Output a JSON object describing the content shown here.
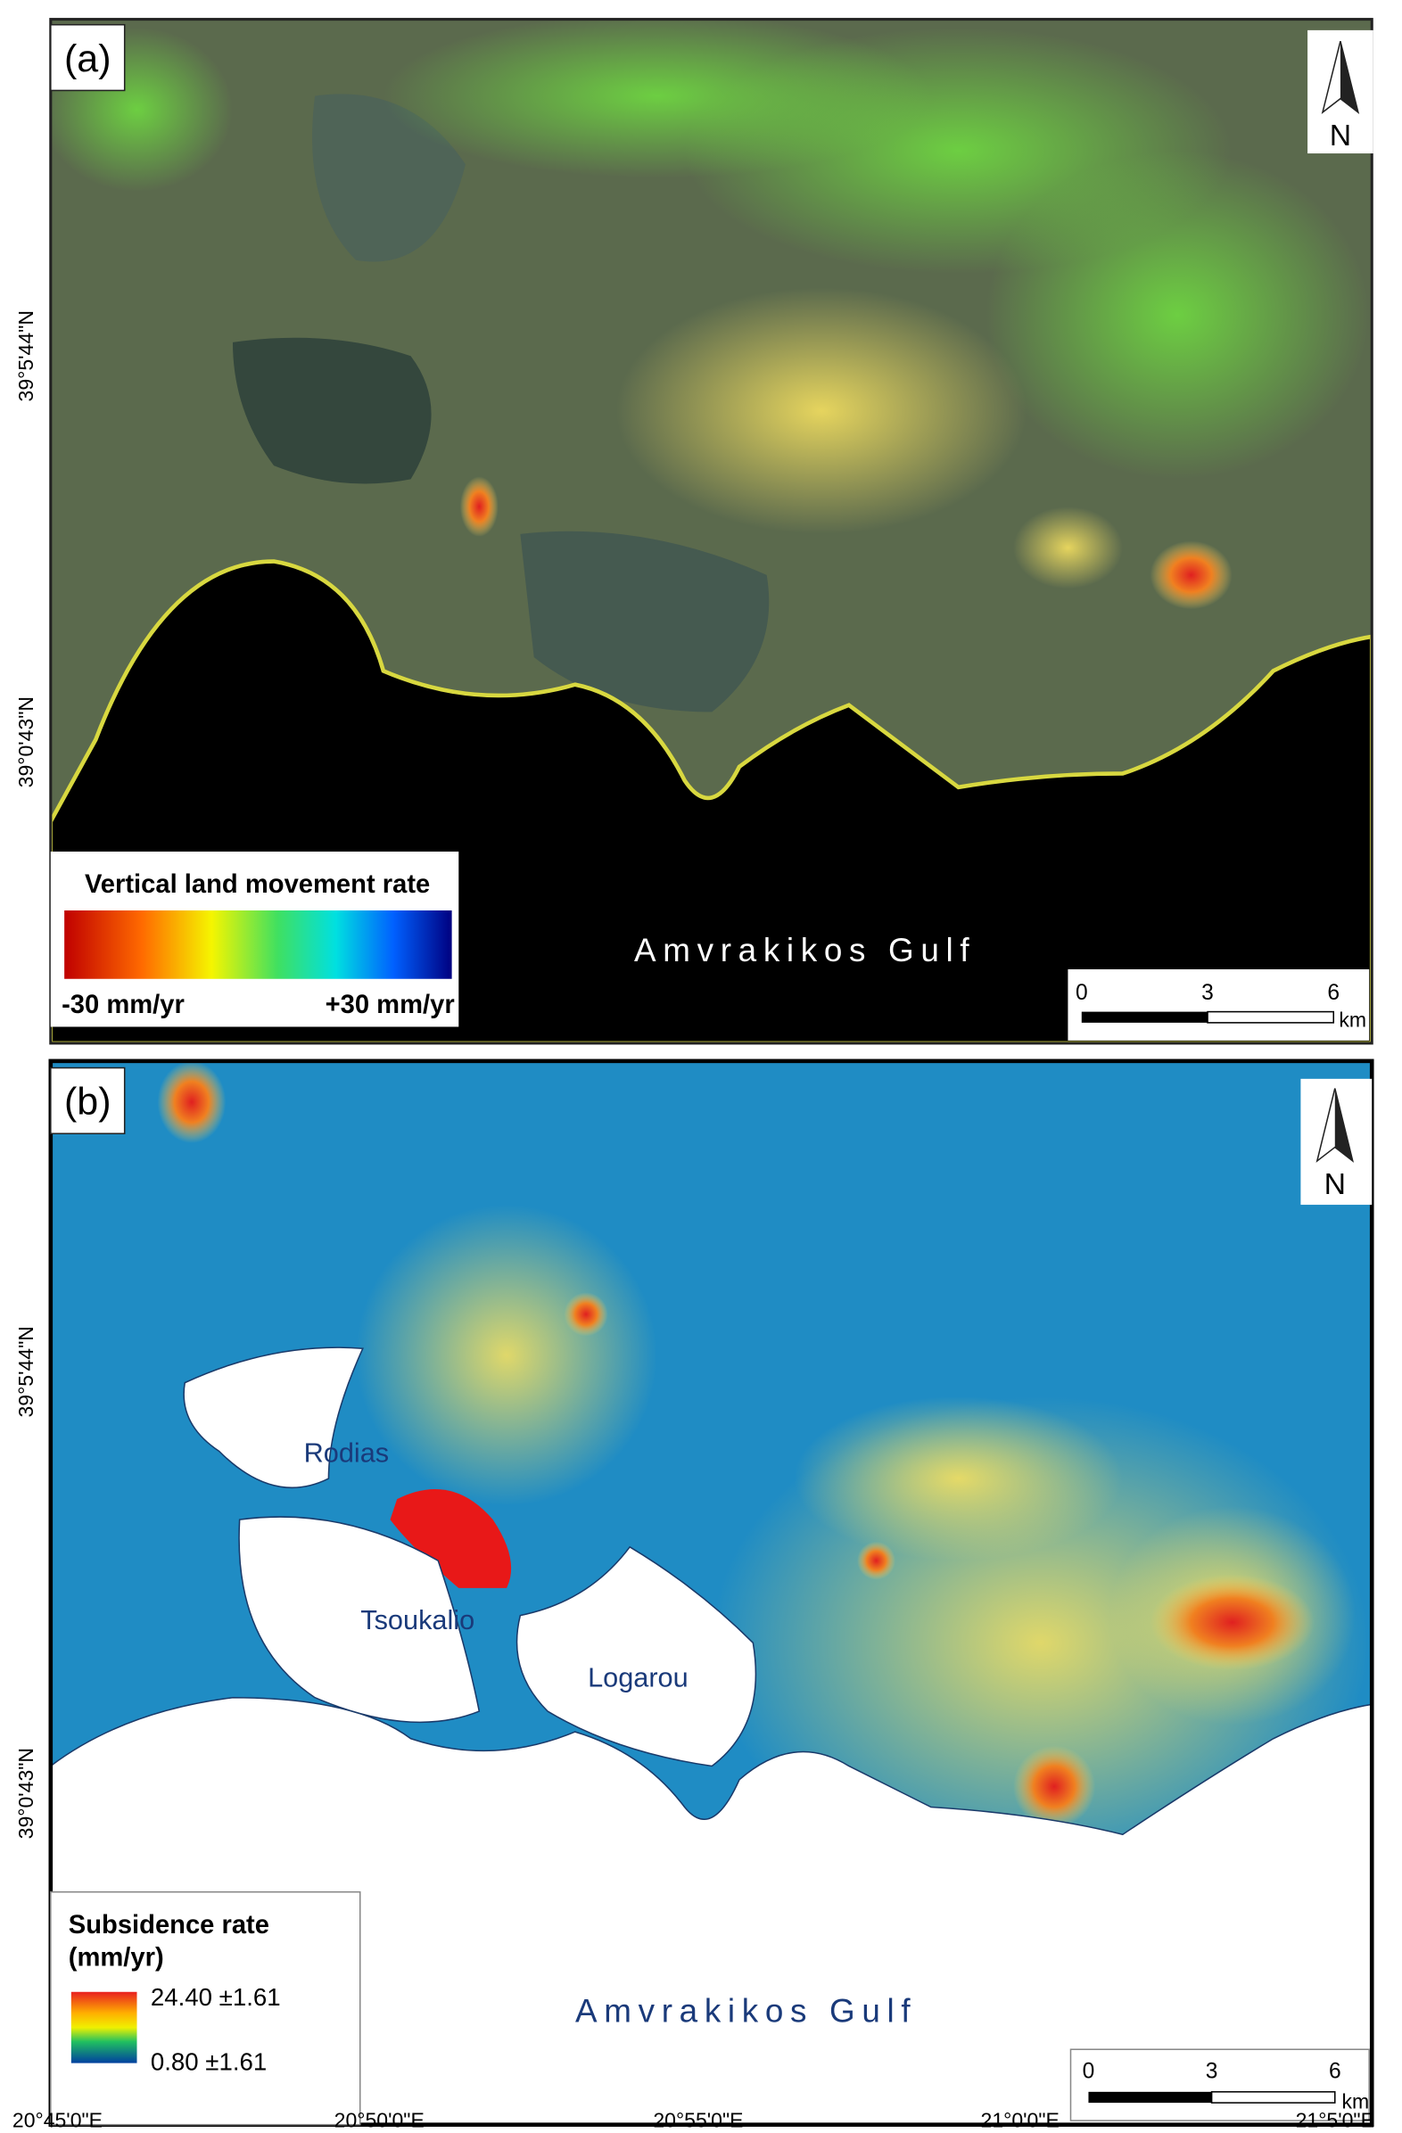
{
  "panels": [
    {
      "label": "(a)",
      "north": "N",
      "lat_labels": [
        "39°5'44\"N",
        "39°0'43\"N"
      ],
      "legend": {
        "title": "Vertical land movement rate",
        "min_label": "-30 mm/yr",
        "max_label": "+30 mm/yr"
      },
      "water_label": "Amvrakikos Gulf",
      "scale_bar": {
        "ticks": [
          0,
          3,
          6
        ],
        "unit": "km"
      }
    },
    {
      "label": "(b)",
      "north": "N",
      "lat_labels": [
        "39°5'44\"N",
        "39°0'43\"N"
      ],
      "legend": {
        "title": "Subsidence rate",
        "unit": "(mm/yr)",
        "max_label": "24.40 ±1.61",
        "min_label": "0.80 ±1.61"
      },
      "places": [
        "Rodias",
        "Tsoukalio",
        "Logarou"
      ],
      "water_label": "Amvrakikos Gulf",
      "scale_bar": {
        "ticks": [
          0,
          3,
          6
        ],
        "unit": "km"
      }
    }
  ],
  "lon_labels": [
    "20°45'0\"E",
    "20°50'0\"E",
    "20°55'0\"E",
    "21°0'0\"E",
    "21°5'0\"E"
  ]
}
